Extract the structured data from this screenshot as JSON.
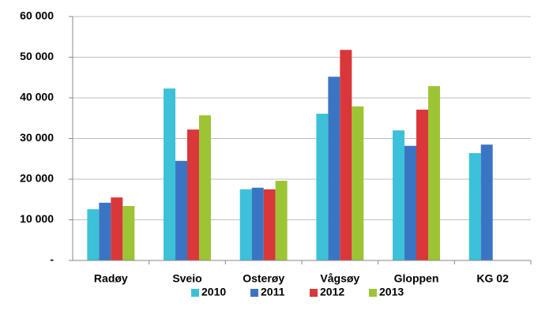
{
  "chart_data": {
    "type": "bar",
    "categories": [
      "Radøy",
      "Sveio",
      "Osterøy",
      "Vågsøy",
      "Gloppen",
      "KG 02"
    ],
    "series": [
      {
        "name": "2010",
        "color": "#3cc1d9",
        "values": [
          12600,
          42300,
          17500,
          36100,
          32000,
          26400
        ]
      },
      {
        "name": "2011",
        "color": "#3a75c4",
        "values": [
          14200,
          24500,
          17900,
          45200,
          28200,
          28500
        ]
      },
      {
        "name": "2012",
        "color": "#d9373a",
        "values": [
          15500,
          32200,
          17500,
          51800,
          37100,
          null
        ]
      },
      {
        "name": "2013",
        "color": "#9dc435",
        "values": [
          13400,
          35700,
          19600,
          37900,
          42900,
          null
        ]
      }
    ],
    "ylim": [
      0,
      60000
    ],
    "yticks": [
      {
        "value": 0,
        "label": "-"
      },
      {
        "value": 10000,
        "label": "10 000"
      },
      {
        "value": 20000,
        "label": "20 000"
      },
      {
        "value": 30000,
        "label": "30 000"
      },
      {
        "value": 40000,
        "label": "40 000"
      },
      {
        "value": 50000,
        "label": "50 000"
      },
      {
        "value": 60000,
        "label": "60 000"
      }
    ],
    "grid": true,
    "legend": "bottom"
  }
}
